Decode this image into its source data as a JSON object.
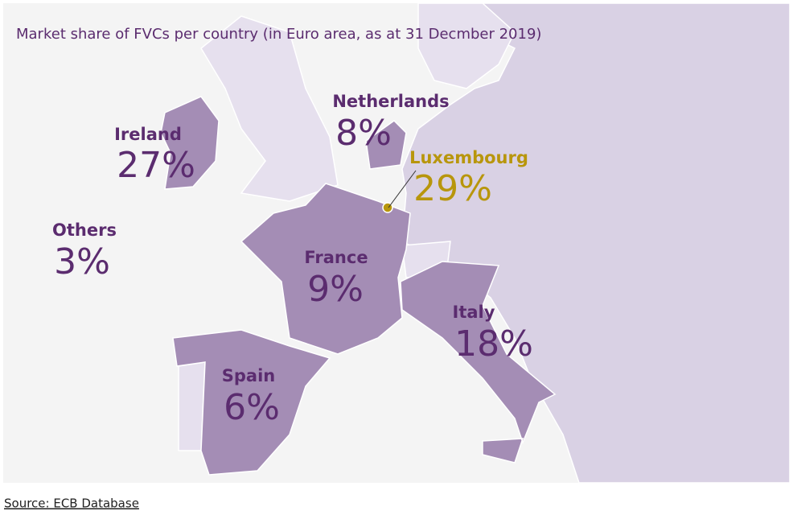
{
  "chart_data": {
    "type": "map",
    "title": "Market share of FVCs per country  (in Euro area, as at 31 Decmber 2019)",
    "categories": [
      "Ireland",
      "Netherlands",
      "Luxembourg",
      "Others",
      "France",
      "Italy",
      "Spain"
    ],
    "values": [
      27,
      8,
      29,
      3,
      9,
      18,
      6
    ],
    "value_labels": [
      "27%",
      "8%",
      "29%",
      "3%",
      "9%",
      "18%",
      "6%"
    ],
    "color": "#a48db5",
    "label_colors": [
      "#5b2c6f",
      "#5b2c6f",
      "#b8960c",
      "#5b2c6f",
      "#5b2c6f",
      "#5b2c6f",
      "#5b2c6f"
    ],
    "source": "Source: ECB Database"
  }
}
